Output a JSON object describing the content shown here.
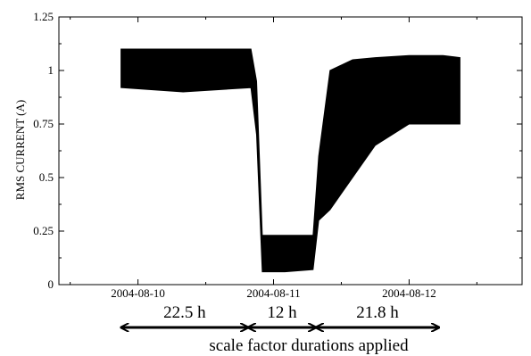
{
  "chart_data": {
    "type": "area",
    "title": "",
    "xlabel": "",
    "ylabel": "RMS CURRENT (A)",
    "x_tick_labels": [
      "2004-08-10",
      "2004-08-11",
      "2004-08-12"
    ],
    "y_ticks": [
      0,
      0.25,
      0.5,
      0.75,
      1,
      1.25
    ],
    "y_tick_labels": [
      "0",
      "0.25",
      "0.5",
      "0.75",
      "1",
      "1.25"
    ],
    "ylim": [
      0,
      1.25
    ],
    "grid": false,
    "series": [
      {
        "x": [
          "2004-08-09 21:00",
          "2004-08-10 08:00",
          "2004-08-10 20:00",
          "2004-08-10 21:00",
          "2004-08-10 22:00",
          "2004-08-11 02:00",
          "2004-08-11 07:00",
          "2004-08-11 08:00",
          "2004-08-11 10:00",
          "2004-08-11 14:00",
          "2004-08-11 18:00",
          "2004-08-12 00:00",
          "2004-08-12 06:00",
          "2004-08-12 09:00"
        ],
        "upper": [
          1.1,
          1.1,
          1.1,
          0.95,
          0.23,
          0.23,
          0.23,
          0.6,
          1.0,
          1.05,
          1.06,
          1.07,
          1.07,
          1.06
        ],
        "lower": [
          0.92,
          0.9,
          0.92,
          0.7,
          0.06,
          0.06,
          0.07,
          0.3,
          0.35,
          0.5,
          0.65,
          0.75,
          0.75,
          0.75
        ]
      }
    ],
    "annotations": [
      {
        "label": "22.5 h",
        "from": "2004-08-09 21:00",
        "to": "2004-08-10 19:30"
      },
      {
        "label": "12 h",
        "from": "2004-08-10 19:30",
        "to": "2004-08-11 07:30"
      },
      {
        "label": "21.8 h",
        "from": "2004-08-11 07:30",
        "to": "2004-08-12 05:18"
      }
    ],
    "caption": "scale factor durations applied"
  }
}
